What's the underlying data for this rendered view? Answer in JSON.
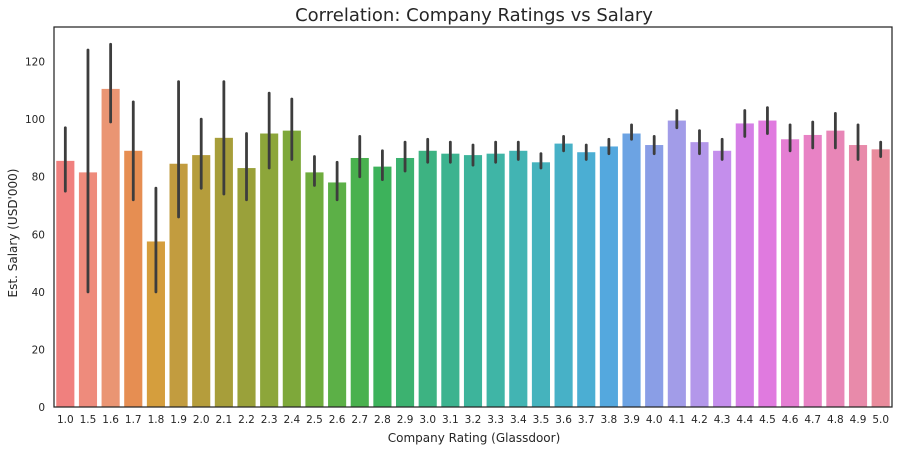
{
  "chart_data": {
    "type": "bar",
    "title": "Correlation: Company Ratings vs Salary",
    "xlabel": "Company Rating (Glassdoor)",
    "ylabel": "Est. Salary (USD'000)",
    "ylim": [
      0,
      132
    ],
    "yticks": [
      0,
      20,
      40,
      60,
      80,
      100,
      120
    ],
    "grid": false,
    "categories": [
      "1.0",
      "1.5",
      "1.6",
      "1.7",
      "1.8",
      "1.9",
      "2.0",
      "2.1",
      "2.2",
      "2.3",
      "2.4",
      "2.5",
      "2.6",
      "2.7",
      "2.8",
      "2.9",
      "3.0",
      "3.1",
      "3.2",
      "3.3",
      "3.4",
      "3.5",
      "3.6",
      "3.7",
      "3.8",
      "3.9",
      "4.0",
      "4.1",
      "4.2",
      "4.3",
      "4.4",
      "4.5",
      "4.6",
      "4.7",
      "4.8",
      "4.9",
      "5.0"
    ],
    "values": [
      85.5,
      81.5,
      110.5,
      89,
      57.5,
      84.5,
      87.5,
      93.5,
      83,
      95,
      96,
      81.5,
      78,
      86.5,
      83.5,
      86.5,
      89,
      88,
      87.5,
      88,
      89,
      85,
      91.5,
      88.5,
      90.5,
      95,
      91,
      99.5,
      92,
      89,
      98.5,
      99.5,
      93,
      94.5,
      96,
      91,
      89.5
    ],
    "error_low": [
      75,
      40,
      99,
      72,
      40,
      66,
      76,
      74,
      72,
      83,
      86,
      77,
      72,
      80,
      79,
      82,
      85,
      85,
      84,
      85,
      86,
      83,
      89,
      86,
      88,
      93,
      88,
      97,
      88,
      86,
      94,
      95,
      89,
      90,
      90,
      86,
      87
    ],
    "error_high": [
      97,
      124,
      126,
      106,
      76,
      113,
      100,
      113,
      95,
      109,
      107,
      87,
      85,
      94,
      89,
      92,
      93,
      92,
      91,
      92,
      92,
      88,
      94,
      91,
      93,
      98,
      94,
      103,
      96,
      93,
      103,
      104,
      98,
      99,
      102,
      98,
      92
    ],
    "colors": [
      "#f0807e",
      "#ee8b7c",
      "#ea9573",
      "#e68e52",
      "#d59e3d",
      "#c29c3f",
      "#b59d3c",
      "#a79e3a",
      "#9aa13a",
      "#8da63a",
      "#7ea83a",
      "#6fac3d",
      "#5cb047",
      "#49b14e",
      "#3db25b",
      "#3cb270",
      "#3db382",
      "#3cb38f",
      "#3db49b",
      "#3fb5a6",
      "#42b4b3",
      "#45b3bd",
      "#47b1c7",
      "#4baed3",
      "#54a8de",
      "#6ca3e3",
      "#8a9ee6",
      "#a29ce8",
      "#b397ea",
      "#c48eec",
      "#d57fe6",
      "#e07adf",
      "#e57ed3",
      "#e882c5",
      "#e886b7",
      "#e88aaa",
      "#e98b9c"
    ],
    "error_bar_color": "#3d3d3d",
    "spine_color": "#262626"
  }
}
